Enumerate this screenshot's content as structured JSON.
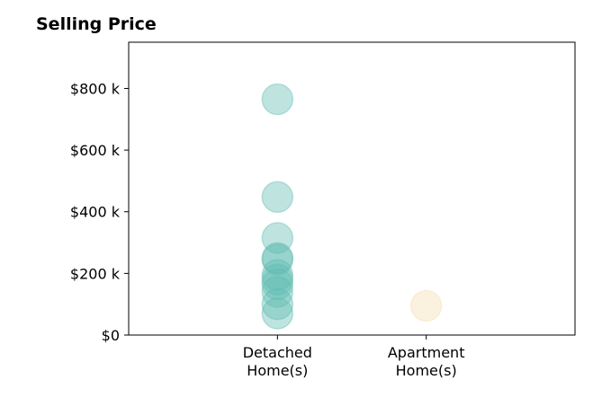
{
  "chart_data": {
    "type": "scatter",
    "title": "Selling Price",
    "xlabel": "",
    "ylabel": "",
    "categories": [
      [
        "Detached",
        "Home(s)"
      ],
      [
        "Apartment",
        "Home(s)"
      ]
    ],
    "xlim": [
      -1,
      2
    ],
    "ylim": [
      0,
      950000
    ],
    "y_ticks": [
      {
        "value": 0,
        "label": "$0"
      },
      {
        "value": 200000,
        "label": "$200 k"
      },
      {
        "value": 400000,
        "label": "$400 k"
      },
      {
        "value": 600000,
        "label": "$600 k"
      },
      {
        "value": 800000,
        "label": "$800 k"
      }
    ],
    "grid": false,
    "legend": "none",
    "series": [
      {
        "color": "#5fbcb2",
        "category_index": 0,
        "values": [
          765000,
          448000,
          315000,
          250000,
          245000,
          195000,
          180000,
          165000,
          140000,
          100000,
          70000
        ]
      },
      {
        "color": "#f2dfaf",
        "category_index": 1,
        "values": [
          95000
        ]
      }
    ]
  }
}
